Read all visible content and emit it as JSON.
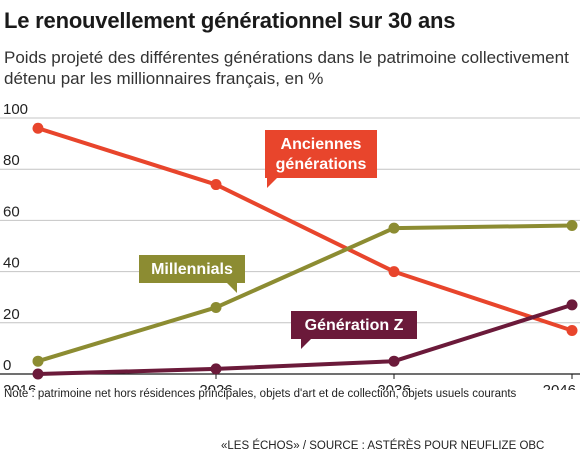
{
  "header": {
    "title": "Le renouvellement générationnel sur 30 ans",
    "subtitle": "Poids projeté des différentes générations dans le patrimoine collectivement détenu par les millionnaires français, en %"
  },
  "footer": {
    "note": "Note : patrimoine net hors résidences principales, objets d'art et de collection, objets usuels courants",
    "source": "«LES ÉCHOS» / SOURCE : ASTÉRÈS POUR NEUFLIZE OBC"
  },
  "chart_data": {
    "type": "line",
    "x": [
      2016,
      2026,
      2036,
      2046
    ],
    "xlabel": "",
    "ylabel": "",
    "ylim": [
      0,
      100
    ],
    "yticks": [
      0,
      20,
      40,
      60,
      80,
      100
    ],
    "grid": "horizontal",
    "series": [
      {
        "name": "Anciennes générations",
        "values": [
          96,
          74,
          40,
          17
        ],
        "color": "#e8452c"
      },
      {
        "name": "Millennials",
        "values": [
          5,
          26,
          57,
          58
        ],
        "color": "#8c8c32"
      },
      {
        "name": "Génération Z",
        "values": [
          0,
          2,
          5,
          27
        ],
        "color": "#6b1a3a"
      }
    ]
  }
}
